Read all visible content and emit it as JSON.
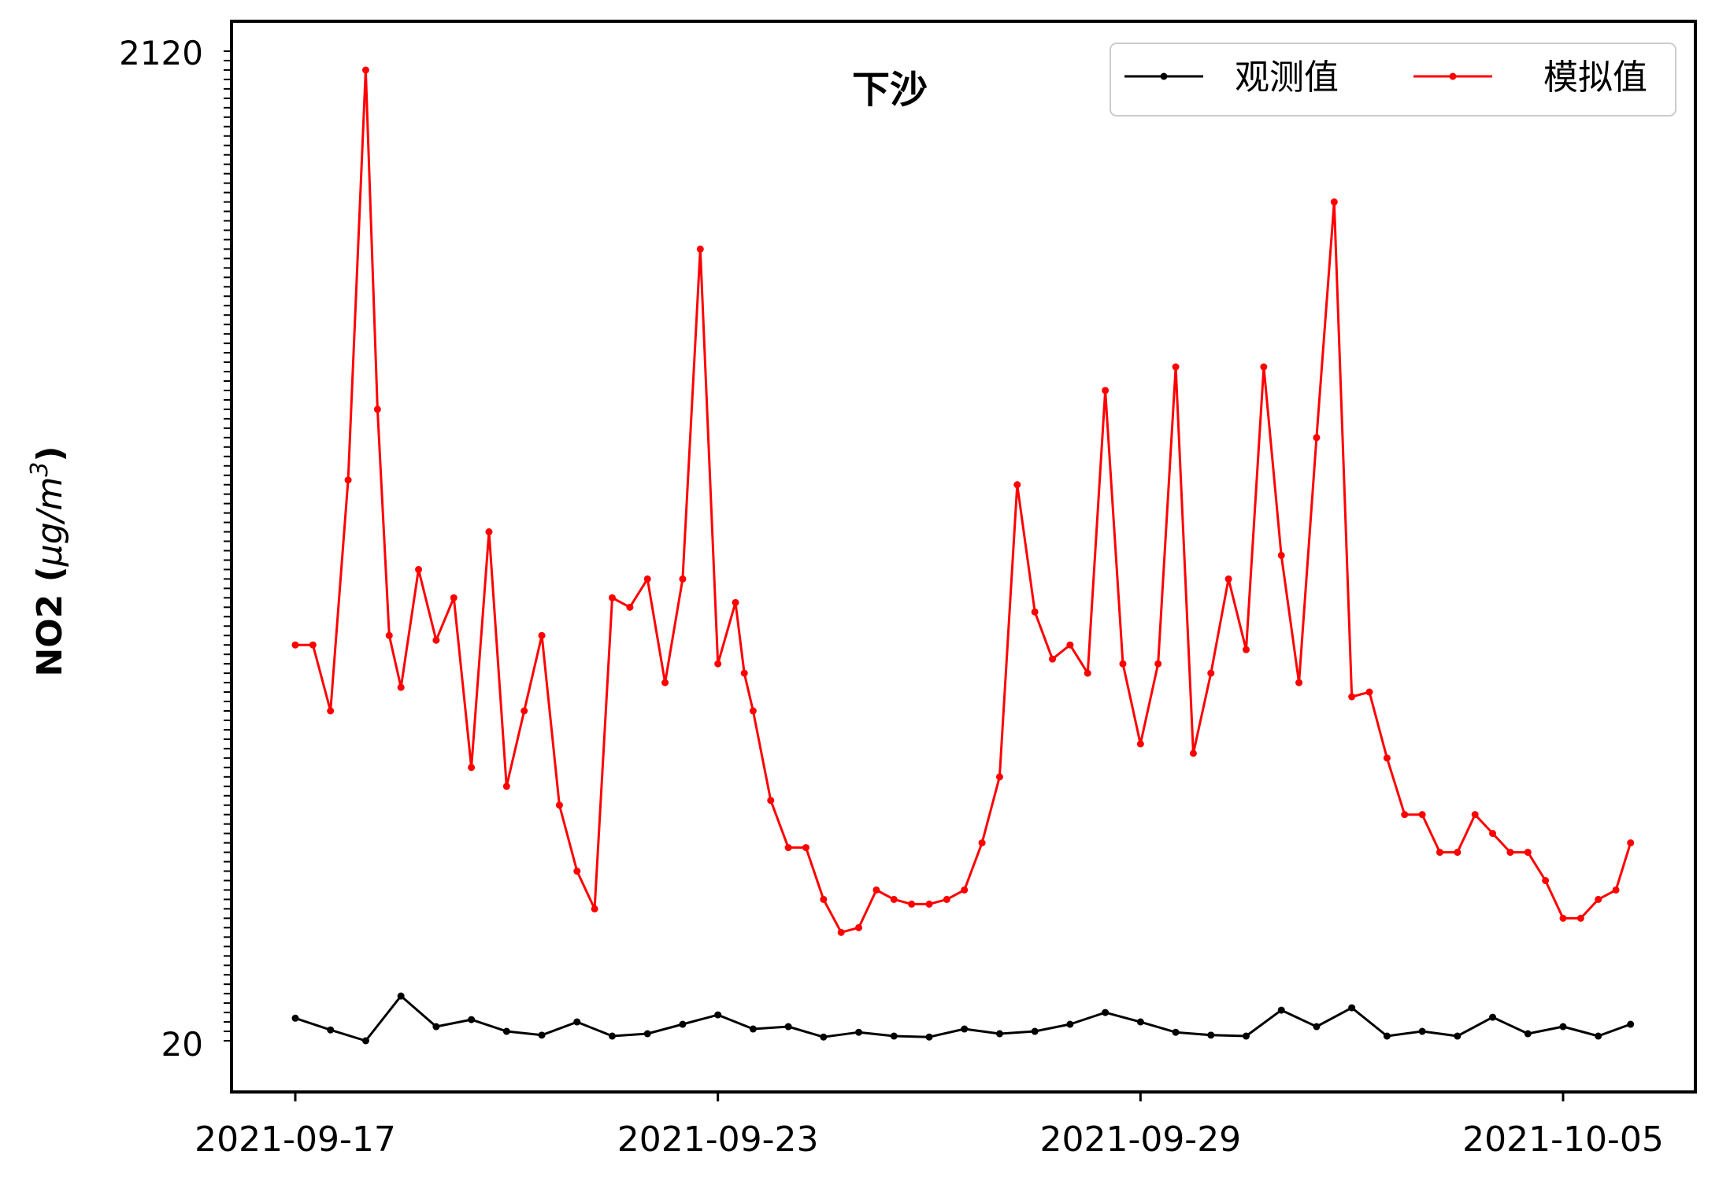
{
  "chart_data": {
    "type": "line",
    "title": "下沙",
    "ylabel": "NO2 (μg/m³)",
    "ylabel_main": "NO2 (",
    "ylabel_unit_base": "μg/m",
    "ylabel_unit_exp": "3",
    "ylabel_close": ")",
    "xlabel": "",
    "x_range": [
      "2021-09-16T00:00",
      "2021-10-06T00:00"
    ],
    "ylim": [
      -30,
      2130
    ],
    "x_ticks": [
      "2021-09-17",
      "2021-09-23",
      "2021-09-29",
      "2021-10-05"
    ],
    "y_ticks_visible": [
      "20",
      "2120"
    ],
    "legend_position": "top-right",
    "grid": false,
    "series": [
      {
        "name": "观测值",
        "color": "#000000",
        "x": [
          "2021-09-17T00:00",
          "2021-09-17T12:00",
          "2021-09-18T00:00",
          "2021-09-18T12:00",
          "2021-09-19T00:00",
          "2021-09-19T12:00",
          "2021-09-20T00:00",
          "2021-09-20T12:00",
          "2021-09-21T00:00",
          "2021-09-21T12:00",
          "2021-09-22T00:00",
          "2021-09-22T12:00",
          "2021-09-23T00:00",
          "2021-09-23T12:00",
          "2021-09-24T00:00",
          "2021-09-24T12:00",
          "2021-09-25T00:00",
          "2021-09-25T12:00",
          "2021-09-26T00:00",
          "2021-09-26T12:00",
          "2021-09-27T00:00",
          "2021-09-27T12:00",
          "2021-09-28T00:00",
          "2021-09-28T12:00",
          "2021-09-29T00:00",
          "2021-09-29T12:00",
          "2021-09-30T00:00",
          "2021-09-30T12:00",
          "2021-10-01T00:00",
          "2021-10-01T12:00",
          "2021-10-02T00:00",
          "2021-10-02T12:00",
          "2021-10-03T00:00",
          "2021-10-03T12:00",
          "2021-10-04T00:00",
          "2021-10-04T12:00",
          "2021-10-05T00:00",
          "2021-10-05T12:00",
          "2021-10-05T23:00"
        ],
        "values": [
          68,
          43,
          20,
          115,
          50,
          65,
          40,
          32,
          60,
          30,
          35,
          55,
          75,
          45,
          50,
          28,
          38,
          30,
          28,
          45,
          35,
          40,
          55,
          80,
          60,
          38,
          32,
          30,
          85,
          50,
          90,
          30,
          40,
          30,
          70,
          35,
          50,
          30,
          55
        ]
      },
      {
        "name": "模拟值",
        "color": "#ff0000",
        "x": [
          "2021-09-17T00:00",
          "2021-09-17T06:00",
          "2021-09-17T12:00",
          "2021-09-17T18:00",
          "2021-09-18T00:00",
          "2021-09-18T04:00",
          "2021-09-18T08:00",
          "2021-09-18T12:00",
          "2021-09-18T18:00",
          "2021-09-19T00:00",
          "2021-09-19T06:00",
          "2021-09-19T12:00",
          "2021-09-19T18:00",
          "2021-09-20T00:00",
          "2021-09-20T06:00",
          "2021-09-20T12:00",
          "2021-09-20T18:00",
          "2021-09-21T00:00",
          "2021-09-21T06:00",
          "2021-09-21T12:00",
          "2021-09-21T18:00",
          "2021-09-22T00:00",
          "2021-09-22T06:00",
          "2021-09-22T12:00",
          "2021-09-22T18:00",
          "2021-09-23T00:00",
          "2021-09-23T06:00",
          "2021-09-23T09:00",
          "2021-09-23T12:00",
          "2021-09-23T18:00",
          "2021-09-24T00:00",
          "2021-09-24T06:00",
          "2021-09-24T12:00",
          "2021-09-24T18:00",
          "2021-09-25T00:00",
          "2021-09-25T06:00",
          "2021-09-25T12:00",
          "2021-09-25T18:00",
          "2021-09-26T00:00",
          "2021-09-26T06:00",
          "2021-09-26T12:00",
          "2021-09-26T18:00",
          "2021-09-27T00:00",
          "2021-09-27T06:00",
          "2021-09-27T12:00",
          "2021-09-27T18:00",
          "2021-09-28T00:00",
          "2021-09-28T06:00",
          "2021-09-28T12:00",
          "2021-09-28T18:00",
          "2021-09-29T00:00",
          "2021-09-29T06:00",
          "2021-09-29T12:00",
          "2021-09-29T18:00",
          "2021-09-30T00:00",
          "2021-09-30T06:00",
          "2021-09-30T12:00",
          "2021-09-30T18:00",
          "2021-10-01T00:00",
          "2021-10-01T06:00",
          "2021-10-01T12:00",
          "2021-10-01T18:00",
          "2021-10-02T00:00",
          "2021-10-02T06:00",
          "2021-10-02T12:00",
          "2021-10-02T18:00",
          "2021-10-03T00:00",
          "2021-10-03T06:00",
          "2021-10-03T12:00",
          "2021-10-03T18:00",
          "2021-10-04T00:00",
          "2021-10-04T06:00",
          "2021-10-04T12:00",
          "2021-10-04T18:00",
          "2021-10-05T00:00",
          "2021-10-05T06:00",
          "2021-10-05T12:00",
          "2021-10-05T18:00",
          "2021-10-05T23:00"
        ],
        "values": [
          860,
          860,
          720,
          1210,
          2080,
          1360,
          880,
          770,
          1020,
          870,
          960,
          600,
          1100,
          560,
          720,
          880,
          520,
          380,
          300,
          960,
          940,
          1000,
          780,
          1000,
          1700,
          820,
          950,
          800,
          720,
          530,
          430,
          430,
          320,
          250,
          260,
          340,
          320,
          310,
          310,
          320,
          340,
          440,
          580,
          1200,
          930,
          830,
          860,
          800,
          1400,
          820,
          650,
          820,
          1450,
          630,
          800,
          1000,
          850,
          1450,
          1050,
          780,
          1300,
          1800,
          750,
          760,
          620,
          500,
          500,
          420,
          420,
          500,
          460,
          420,
          420,
          360,
          280,
          280,
          320,
          340,
          440
        ]
      }
    ]
  }
}
